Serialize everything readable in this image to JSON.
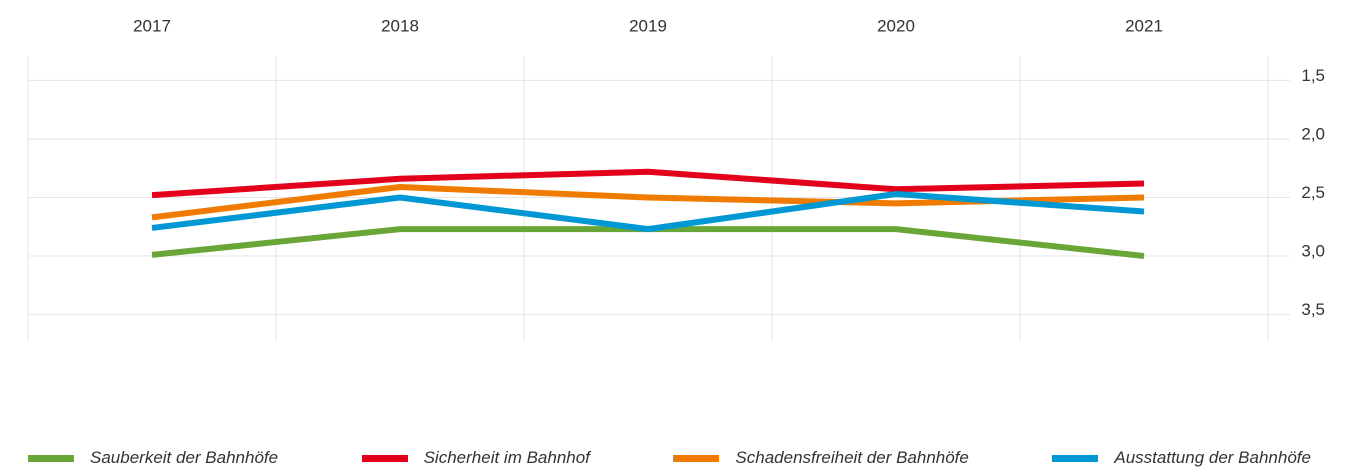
{
  "chart_data": {
    "type": "line",
    "categories": [
      "2017",
      "2018",
      "2019",
      "2020",
      "2021"
    ],
    "series": [
      {
        "name": "Sauberkeit der Bahnhöfe",
        "color": "#6aa637",
        "values": [
          2.99,
          2.77,
          2.77,
          2.77,
          3.0
        ]
      },
      {
        "name": "Sicherheit im Bahnhof",
        "color": "#e3001b",
        "values": [
          2.48,
          2.34,
          2.28,
          2.43,
          2.38
        ]
      },
      {
        "name": "Schadensfreiheit der Bahnhöfe",
        "color": "#ef7c00",
        "values": [
          2.67,
          2.41,
          2.5,
          2.55,
          2.5
        ]
      },
      {
        "name": "Ausstattung der Bahnhöfe",
        "color": "#0098d4",
        "values": [
          2.76,
          2.5,
          2.77,
          2.47,
          2.62
        ]
      }
    ],
    "ylim": [
      1.3,
      3.7
    ],
    "y_inverted": true,
    "yticks": [
      {
        "value": 1.5,
        "label": "1,5"
      },
      {
        "value": 2.0,
        "label": "2,0"
      },
      {
        "value": 2.5,
        "label": "2,5"
      },
      {
        "value": 3.0,
        "label": "3,0"
      },
      {
        "value": 3.5,
        "label": "3,5"
      }
    ],
    "grid": true,
    "legend": "bottom"
  }
}
